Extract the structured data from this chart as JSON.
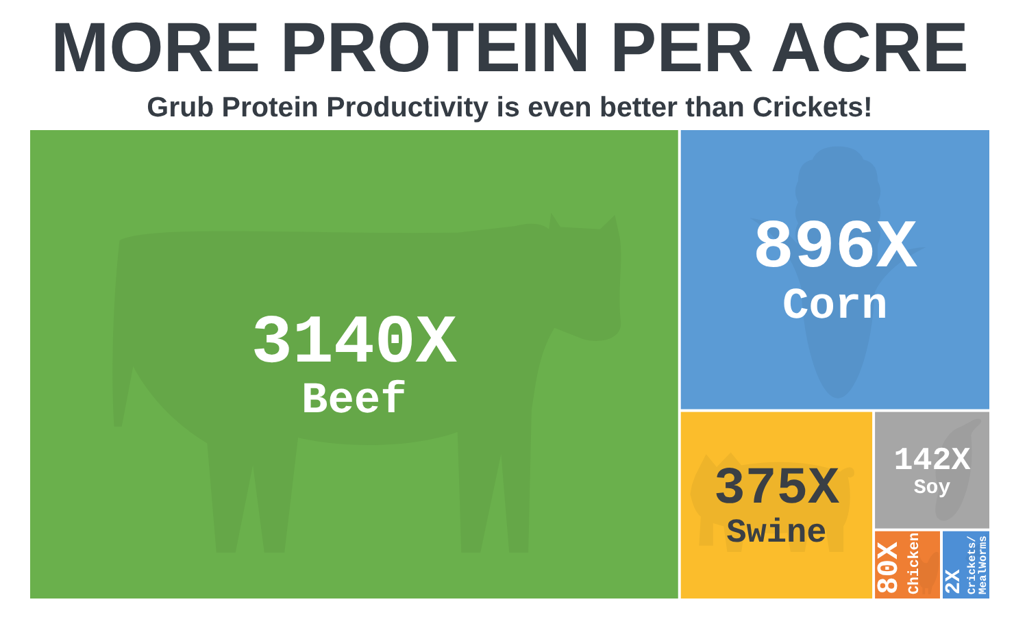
{
  "chart_data": {
    "type": "other",
    "title": "MORE PROTEIN PER ACRE",
    "subtitle": "Grub Protein Productivity is even better than Crickets!",
    "categories": [
      "Beef",
      "Corn",
      "Swine",
      "Soy",
      "Chicken",
      "Crickets/ MealWorms"
    ],
    "values": [
      3140,
      896,
      375,
      142,
      80,
      2
    ],
    "value_labels": [
      "3140X",
      "896X",
      "375X",
      "142X",
      "80X",
      "2X"
    ],
    "colors": [
      "#6ab04c",
      "#5b9bd5",
      "#fbbd2c",
      "#a6a6a6",
      "#ef7e33",
      "#4d8fd6"
    ]
  }
}
